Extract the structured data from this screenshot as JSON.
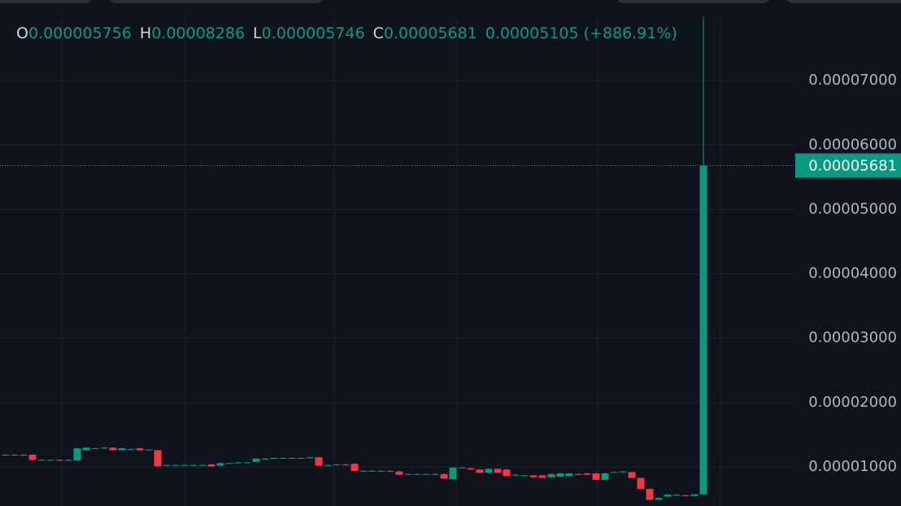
{
  "chart_data": {
    "type": "candlestick",
    "ohlc_legend": [
      {
        "label": "O",
        "value": "0.000005756"
      },
      {
        "label": "H",
        "value": "0.00008286"
      },
      {
        "label": "L",
        "value": "0.000005746"
      },
      {
        "label": "C",
        "value": "0.00005681"
      }
    ],
    "change": "0.00005105",
    "change_percent": "(+886.91%)",
    "up_color": "#089981",
    "down_color": "#f23645",
    "grid": true,
    "ylim": [
      3.94e-06,
      8e-05
    ],
    "yticks": [
      {
        "value": 1e-05,
        "label": "0.00001000"
      },
      {
        "value": 2e-05,
        "label": "0.00002000"
      },
      {
        "value": 3e-05,
        "label": "0.00003000"
      },
      {
        "value": 4e-05,
        "label": "0.00004000"
      },
      {
        "value": 5e-05,
        "label": "0.00005000"
      },
      {
        "value": 6e-05,
        "label": "0.00006000"
      },
      {
        "value": 7e-05,
        "label": "0.00007000"
      }
    ],
    "last_price": {
      "value": 5.681e-05,
      "label": "0.00005681"
    },
    "open": [
      1.19e-05,
      1.19e-05,
      1.19e-05,
      1.19e-05,
      1.11e-05,
      1.11e-05,
      1.11e-05,
      1.1e-05,
      1.1e-05,
      1.26e-05,
      1.29e-05,
      1.29e-05,
      1.3e-05,
      1.26e-05,
      1.28e-05,
      1.29e-05,
      1.27e-05,
      1.26e-05,
      1.02e-05,
      1.03e-05,
      1.03e-05,
      1.03e-05,
      1.03e-05,
      1.04e-05,
      1.02e-05,
      1.06e-05,
      1.06e-05,
      1.07e-05,
      1.08e-05,
      1.13e-05,
      1.13e-05,
      1.14e-05,
      1.14e-05,
      1.14e-05,
      1.14e-05,
      1.15e-05,
      1.03e-05,
      1.03e-05,
      1.04e-05,
      1.05e-05,
      9.4e-06,
      9.4e-06,
      9.4e-06,
      9.4e-06,
      9.3e-06,
      8.9e-06,
      8.9e-06,
      8.9e-06,
      8.9e-06,
      8.9e-06,
      8.1e-06,
      9.9e-06,
      9.8e-06,
      9.6e-06,
      9.1e-06,
      9.7e-06,
      9.6e-06,
      8.7e-06,
      8.6e-06,
      8.7e-06,
      8.7e-06,
      8.4e-06,
      8.5e-06,
      8.6e-06,
      8.9e-06,
      9e-06,
      9e-06,
      8e-06,
      9.2e-06,
      9.2e-06,
      9.2e-06,
      8.3e-06,
      6.6e-06,
      4.9e-06,
      5.4e-06,
      5.7e-06,
      5.6e-06,
      5.5e-06,
      5.756e-06
    ],
    "high": [
      1.2e-05,
      1.2e-05,
      1.2e-05,
      1.2e-05,
      1.12e-05,
      1.12e-05,
      1.12e-05,
      1.12e-05,
      1.3e-05,
      1.31e-05,
      1.3e-05,
      1.31e-05,
      1.31e-05,
      1.3e-05,
      1.29e-05,
      1.3e-05,
      1.28e-05,
      1.27e-05,
      1.04e-05,
      1.04e-05,
      1.04e-05,
      1.04e-05,
      1.04e-05,
      1.05e-05,
      1.07e-05,
      1.07e-05,
      1.08e-05,
      1.08e-05,
      1.14e-05,
      1.14e-05,
      1.15e-05,
      1.15e-05,
      1.15e-05,
      1.15e-05,
      1.16e-05,
      1.16e-05,
      1.04e-05,
      1.05e-05,
      1.05e-05,
      1.06e-05,
      9.5e-06,
      9.5e-06,
      9.5e-06,
      9.5e-06,
      9.4e-06,
      9e-06,
      9e-06,
      9e-06,
      9e-06,
      9e-06,
      1e-05,
      1e-05,
      9.9e-06,
      9.7e-06,
      9.8e-06,
      9.8e-06,
      9.7e-06,
      8.9e-06,
      8.8e-06,
      8.8e-06,
      8.8e-06,
      9e-06,
      9.1e-06,
      9.1e-06,
      9e-06,
      9.1e-06,
      9.1e-06,
      9.1e-06,
      9.3e-06,
      9.4e-06,
      9.3e-06,
      8.4e-06,
      6.7e-06,
      5.3e-06,
      5.8e-06,
      5.8e-06,
      5.7e-06,
      5.8e-06,
      8.286e-05
    ],
    "low": [
      1.18e-05,
      1.18e-05,
      1.17e-05,
      1.1e-05,
      1.1e-05,
      1.1e-05,
      1.09e-05,
      1.09e-05,
      1.09e-05,
      1.25e-05,
      1.28e-05,
      1.28e-05,
      1.25e-05,
      1.25e-05,
      1.27e-05,
      1.25e-05,
      1.26e-05,
      1e-05,
      1.01e-05,
      1.02e-05,
      1.02e-05,
      1.02e-05,
      1.02e-05,
      1e-05,
      1.01e-05,
      1.05e-05,
      1.05e-05,
      1.06e-05,
      1.07e-05,
      1.12e-05,
      1.12e-05,
      1.13e-05,
      1.13e-05,
      1.13e-05,
      1.13e-05,
      1.01e-05,
      1.02e-05,
      1.02e-05,
      1.02e-05,
      9.3e-06,
      9.3e-06,
      9.3e-06,
      9.3e-06,
      9.2e-06,
      8.7e-06,
      8.8e-06,
      8.8e-06,
      8.8e-06,
      8.8e-06,
      8.1e-06,
      8e-06,
      9.8e-06,
      9.5e-06,
      9e-06,
      9e-06,
      9e-06,
      8.5e-06,
      8.6e-06,
      8.5e-06,
      8.3e-06,
      8.2e-06,
      8.3e-06,
      8.4e-06,
      8.5e-06,
      8.7e-06,
      8.7e-06,
      7.9e-06,
      7.9e-06,
      9.1e-06,
      9.1e-06,
      8.2e-06,
      6.5e-06,
      4.8e-06,
      4.8e-06,
      5.3e-06,
      5.6e-06,
      5.4e-06,
      5.4e-06,
      5.746e-06
    ],
    "close": [
      1.19e-05,
      1.19e-05,
      1.18e-05,
      1.11e-05,
      1.11e-05,
      1.11e-05,
      1.1e-05,
      1.11e-05,
      1.29e-05,
      1.3e-05,
      1.29e-05,
      1.3e-05,
      1.26e-05,
      1.29e-05,
      1.28e-05,
      1.26e-05,
      1.27e-05,
      1.01e-05,
      1.03e-05,
      1.03e-05,
      1.03e-05,
      1.03e-05,
      1.03e-05,
      1.01e-05,
      1.06e-05,
      1.06e-05,
      1.07e-05,
      1.07e-05,
      1.13e-05,
      1.13e-05,
      1.14e-05,
      1.14e-05,
      1.14e-05,
      1.14e-05,
      1.15e-05,
      1.02e-05,
      1.03e-05,
      1.04e-05,
      1.03e-05,
      9.4e-06,
      9.4e-06,
      9.4e-06,
      9.4e-06,
      9.3e-06,
      8.8e-06,
      8.9e-06,
      8.9e-06,
      8.9e-06,
      8.9e-06,
      8.2e-06,
      9.9e-06,
      9.9e-06,
      9.6e-06,
      9.1e-06,
      9.7e-06,
      9.1e-06,
      8.6e-06,
      8.8e-06,
      8.7e-06,
      8.4e-06,
      8.3e-06,
      8.9e-06,
      9e-06,
      9e-06,
      8.8e-06,
      8.8e-06,
      8e-06,
      9e-06,
      9.2e-06,
      9.3e-06,
      8.3e-06,
      6.6e-06,
      4.9e-06,
      5.2e-06,
      5.7e-06,
      5.7e-06,
      5.5e-06,
      5.75e-06,
      5.681e-05
    ]
  }
}
